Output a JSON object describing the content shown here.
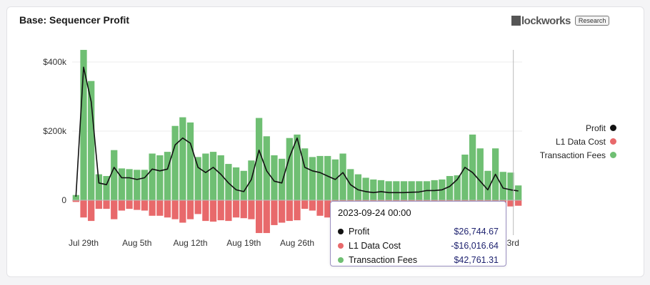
{
  "header": {
    "title": "Base: Sequencer Profit",
    "brand_word": "lockworks",
    "brand_badge": "Research"
  },
  "legend": [
    {
      "label": "Profit",
      "color": "#111111"
    },
    {
      "label": "L1 Data Cost",
      "color": "#e8696b"
    },
    {
      "label": "Transaction Fees",
      "color": "#6fbf73"
    }
  ],
  "tooltip": {
    "title": "2023-09-24 00:00",
    "rows": [
      {
        "label": "Profit",
        "value": "$26,744.67",
        "color": "#111111"
      },
      {
        "label": "L1 Data Cost",
        "value": "-$16,016.64",
        "color": "#e8696b"
      },
      {
        "label": "Transaction Fees",
        "value": "$42,761.31",
        "color": "#6fbf73"
      }
    ]
  },
  "chart_data": {
    "type": "bar",
    "title": "Base: Sequencer Profit",
    "xlabel": "",
    "ylabel": "",
    "ylim": [
      -100000,
      450000
    ],
    "yticks": [
      {
        "value": 0,
        "label": "0"
      },
      {
        "value": 200000,
        "label": "$200k"
      },
      {
        "value": 400000,
        "label": "$400k"
      }
    ],
    "x_tick_labels": [
      {
        "index": 1,
        "label": "Jul 29th"
      },
      {
        "index": 8,
        "label": "Aug 5th"
      },
      {
        "index": 15,
        "label": "Aug 12th"
      },
      {
        "index": 22,
        "label": "Aug 19th"
      },
      {
        "index": 29,
        "label": "Aug 26th"
      },
      {
        "index": 57,
        "label": "23rd"
      }
    ],
    "categories": [
      "2023-07-28",
      "2023-07-29",
      "2023-07-30",
      "2023-07-31",
      "2023-08-01",
      "2023-08-02",
      "2023-08-03",
      "2023-08-04",
      "2023-08-05",
      "2023-08-06",
      "2023-08-07",
      "2023-08-08",
      "2023-08-09",
      "2023-08-10",
      "2023-08-11",
      "2023-08-12",
      "2023-08-13",
      "2023-08-14",
      "2023-08-15",
      "2023-08-16",
      "2023-08-17",
      "2023-08-18",
      "2023-08-19",
      "2023-08-20",
      "2023-08-21",
      "2023-08-22",
      "2023-08-23",
      "2023-08-24",
      "2023-08-25",
      "2023-08-26",
      "2023-08-27",
      "2023-08-28",
      "2023-08-29",
      "2023-08-30",
      "2023-08-31",
      "2023-09-01",
      "2023-09-02",
      "2023-09-03",
      "2023-09-04",
      "2023-09-05",
      "2023-09-06",
      "2023-09-07",
      "2023-09-08",
      "2023-09-09",
      "2023-09-10",
      "2023-09-11",
      "2023-09-12",
      "2023-09-13",
      "2023-09-14",
      "2023-09-15",
      "2023-09-16",
      "2023-09-17",
      "2023-09-18",
      "2023-09-19",
      "2023-09-20",
      "2023-09-21",
      "2023-09-22",
      "2023-09-23",
      "2023-09-24"
    ],
    "series": [
      {
        "name": "Transaction Fees",
        "values": [
          15000,
          435000,
          345000,
          75000,
          70000,
          145000,
          92000,
          90000,
          88000,
          88000,
          135000,
          130000,
          140000,
          215000,
          240000,
          225000,
          125000,
          135000,
          140000,
          130000,
          105000,
          95000,
          85000,
          115000,
          238000,
          185000,
          130000,
          120000,
          180000,
          190000,
          150000,
          125000,
          128000,
          128000,
          118000,
          135000,
          90000,
          75000,
          65000,
          60000,
          58000,
          55000,
          55000,
          55000,
          55000,
          55000,
          55000,
          58000,
          60000,
          70000,
          72000,
          132000,
          190000,
          150000,
          85000,
          150000,
          82000,
          80000,
          42761
        ]
      },
      {
        "name": "L1 Data Cost",
        "values": [
          -5000,
          -50000,
          -60000,
          -25000,
          -25000,
          -55000,
          -30000,
          -25000,
          -28000,
          -30000,
          -45000,
          -45000,
          -50000,
          -55000,
          -65000,
          -55000,
          -40000,
          -60000,
          -62000,
          -58000,
          -60000,
          -50000,
          -52000,
          -55000,
          -95000,
          -95000,
          -72000,
          -65000,
          -60000,
          -58000,
          -25000,
          -30000,
          -45000,
          -50000,
          -60000,
          -55000,
          -35000,
          -30000,
          -25000,
          -25000,
          -25000,
          -25000,
          -25000,
          -25000,
          -22000,
          -22000,
          -22000,
          -22000,
          -22000,
          -25000,
          -25000,
          -30000,
          -30000,
          -25000,
          -25000,
          -30000,
          -20000,
          -18000,
          -16017
        ]
      },
      {
        "name": "Profit",
        "values": [
          10000,
          385000,
          285000,
          50000,
          45000,
          95000,
          65000,
          65000,
          60000,
          65000,
          90000,
          85000,
          90000,
          160000,
          180000,
          165000,
          95000,
          80000,
          95000,
          75000,
          50000,
          30000,
          25000,
          60000,
          145000,
          85000,
          55000,
          50000,
          125000,
          180000,
          95000,
          85000,
          80000,
          70000,
          60000,
          80000,
          45000,
          30000,
          25000,
          22000,
          25000,
          22000,
          22000,
          22000,
          23000,
          24000,
          28000,
          28000,
          30000,
          40000,
          60000,
          95000,
          80000,
          55000,
          30000,
          75000,
          35000,
          30000,
          26745
        ]
      }
    ],
    "highlighted_index": 58
  }
}
